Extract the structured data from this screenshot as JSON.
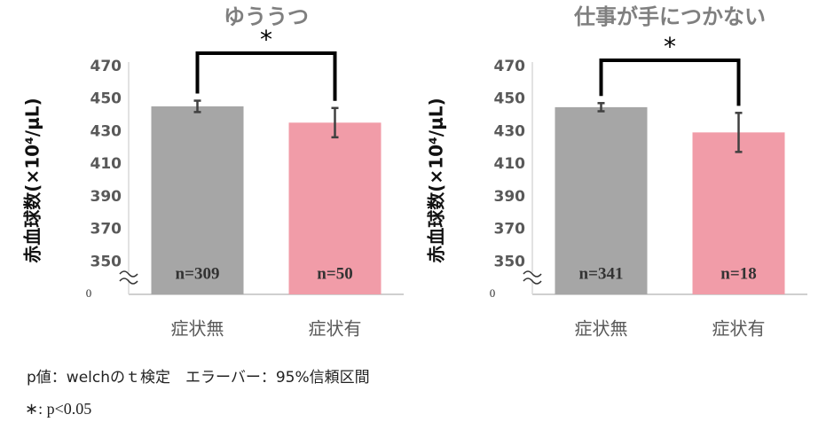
{
  "charts": [
    {
      "type": "bar",
      "title": "ゆううつ",
      "y_label": "赤血球数(×10⁴/μL)",
      "categories": [
        "症状無",
        "症状有"
      ],
      "values": [
        445.5,
        435.5
      ],
      "errors": [
        3.5,
        9
      ],
      "colors": [
        "#a6a6a6",
        "#f19ca8"
      ],
      "bar_labels": [
        "n=309",
        "n=50"
      ],
      "significance": "*",
      "ylim": [
        330,
        470
      ],
      "yticks": [
        0,
        350,
        370,
        390,
        410,
        430,
        450,
        470
      ],
      "axis_break": true
    },
    {
      "type": "bar",
      "title": "仕事が手につかない",
      "y_label": "赤血球数(×10⁴/μL)",
      "categories": [
        "症状無",
        "症状有"
      ],
      "values": [
        445,
        429.5
      ],
      "errors": [
        2.5,
        12
      ],
      "colors": [
        "#a6a6a6",
        "#f19ca8"
      ],
      "bar_labels": [
        "n=341",
        "n=18"
      ],
      "significance": "*",
      "ylim": [
        330,
        470
      ],
      "yticks": [
        0,
        350,
        370,
        390,
        410,
        430,
        450,
        470
      ],
      "axis_break": true
    }
  ],
  "notes": [
    "p値：welchのｔ検定　エラーバー：95%信頼区間",
    "∗: p<0.05"
  ]
}
